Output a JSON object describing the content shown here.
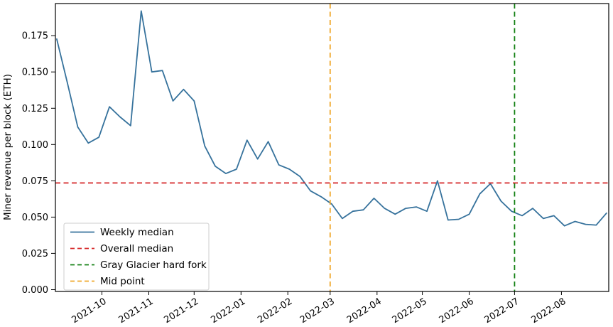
{
  "chart_data": {
    "type": "line",
    "title": "",
    "xlabel": "",
    "ylabel": "Miner revenue per block (ETH)",
    "grid": false,
    "legend_position": "lower left",
    "ylim": [
      -0.002,
      0.198
    ],
    "y_ticks": [
      "0.000",
      "0.025",
      "0.050",
      "0.075",
      "0.100",
      "0.125",
      "0.150",
      "0.175"
    ],
    "x_ticks": [
      {
        "label": "2021-10",
        "date": "2021-10-01"
      },
      {
        "label": "2021-11",
        "date": "2021-11-01"
      },
      {
        "label": "2021-12",
        "date": "2021-12-01"
      },
      {
        "label": "2022-01",
        "date": "2022-01-01"
      },
      {
        "label": "2022-02",
        "date": "2022-02-01"
      },
      {
        "label": "2022-03",
        "date": "2022-03-01"
      },
      {
        "label": "2022-04",
        "date": "2022-04-01"
      },
      {
        "label": "2022-05",
        "date": "2022-05-01"
      },
      {
        "label": "2022-06",
        "date": "2022-06-01"
      },
      {
        "label": "2022-07",
        "date": "2022-07-01"
      },
      {
        "label": "2022-08",
        "date": "2022-08-01"
      }
    ],
    "series": [
      {
        "name": "Weekly median",
        "color": "#36729c",
        "style": "solid",
        "points": [
          [
            "2021-09-01",
            0.173
          ],
          [
            "2021-09-08",
            0.143
          ],
          [
            "2021-09-15",
            0.112
          ],
          [
            "2021-09-22",
            0.101
          ],
          [
            "2021-09-29",
            0.105
          ],
          [
            "2021-10-06",
            0.126
          ],
          [
            "2021-10-13",
            0.119
          ],
          [
            "2021-10-20",
            0.113
          ],
          [
            "2021-10-27",
            0.192
          ],
          [
            "2021-11-03",
            0.15
          ],
          [
            "2021-11-10",
            0.151
          ],
          [
            "2021-11-17",
            0.13
          ],
          [
            "2021-11-24",
            0.138
          ],
          [
            "2021-12-01",
            0.13
          ],
          [
            "2021-12-08",
            0.099
          ],
          [
            "2021-12-15",
            0.085
          ],
          [
            "2021-12-22",
            0.08
          ],
          [
            "2021-12-29",
            0.083
          ],
          [
            "2022-01-05",
            0.103
          ],
          [
            "2022-01-12",
            0.09
          ],
          [
            "2022-01-19",
            0.102
          ],
          [
            "2022-01-26",
            0.086
          ],
          [
            "2022-02-02",
            0.083
          ],
          [
            "2022-02-09",
            0.078
          ],
          [
            "2022-02-16",
            0.068
          ],
          [
            "2022-02-23",
            0.064
          ],
          [
            "2022-03-02",
            0.059
          ],
          [
            "2022-03-09",
            0.049
          ],
          [
            "2022-03-16",
            0.054
          ],
          [
            "2022-03-23",
            0.055
          ],
          [
            "2022-03-30",
            0.063
          ],
          [
            "2022-04-06",
            0.056
          ],
          [
            "2022-04-13",
            0.052
          ],
          [
            "2022-04-20",
            0.056
          ],
          [
            "2022-04-27",
            0.057
          ],
          [
            "2022-05-04",
            0.054
          ],
          [
            "2022-05-11",
            0.075
          ],
          [
            "2022-05-18",
            0.048
          ],
          [
            "2022-05-25",
            0.0485
          ],
          [
            "2022-06-01",
            0.052
          ],
          [
            "2022-06-08",
            0.066
          ],
          [
            "2022-06-15",
            0.073
          ],
          [
            "2022-06-22",
            0.061
          ],
          [
            "2022-06-29",
            0.054
          ],
          [
            "2022-07-06",
            0.051
          ],
          [
            "2022-07-13",
            0.056
          ],
          [
            "2022-07-20",
            0.049
          ],
          [
            "2022-07-27",
            0.051
          ],
          [
            "2022-08-03",
            0.044
          ],
          [
            "2022-08-10",
            0.047
          ],
          [
            "2022-08-17",
            0.045
          ],
          [
            "2022-08-24",
            0.0445
          ],
          [
            "2022-08-31",
            0.053
          ]
        ]
      }
    ],
    "reference_lines": [
      {
        "name": "Overall median",
        "orientation": "horizontal",
        "value": 0.0735,
        "color": "#d62728",
        "style": "dashed"
      },
      {
        "name": "Gray Glacier hard fork",
        "orientation": "vertical",
        "date": "2022-07-01",
        "color": "#128012",
        "style": "dashed"
      },
      {
        "name": "Mid point",
        "orientation": "vertical",
        "date": "2022-03-01",
        "color": "#efa82b",
        "style": "dashed"
      }
    ],
    "legend": [
      "Weekly median",
      "Overall median",
      "Gray Glacier hard fork",
      "Mid point"
    ]
  }
}
